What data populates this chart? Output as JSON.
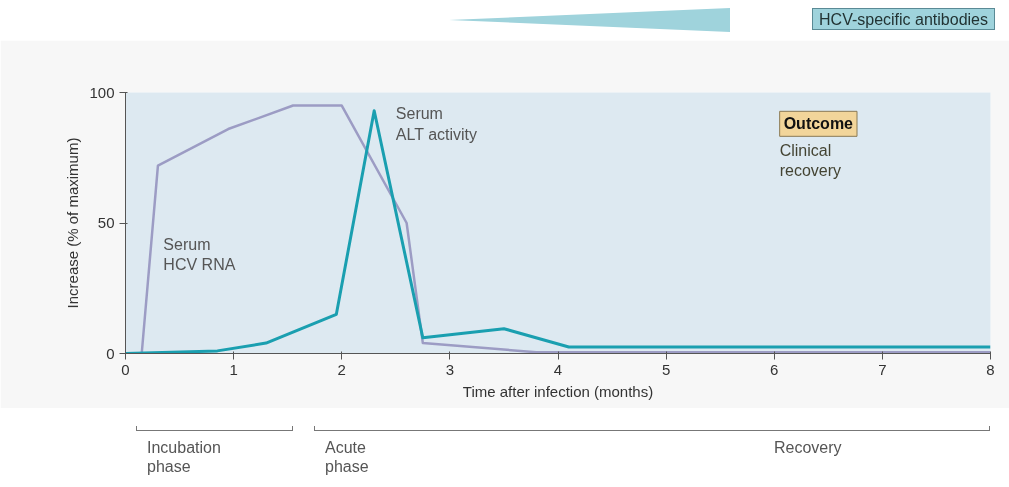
{
  "chart_data": {
    "type": "line",
    "xlabel": "Time after infection (months)",
    "ylabel": "Increase (% of maximum)",
    "xlim": [
      0,
      8
    ],
    "ylim": [
      0,
      100
    ],
    "xticks": [
      0,
      1,
      2,
      3,
      4,
      5,
      6,
      7,
      8
    ],
    "yticks": [
      0,
      50,
      100
    ],
    "grid": false,
    "legend": false,
    "marker": "none",
    "line_style": "solid",
    "series": [
      {
        "name": "Serum HCV RNA",
        "color": "#9c9cc4",
        "x": [
          0,
          0.15,
          0.3,
          0.95,
          1.55,
          2.0,
          2.6,
          2.75,
          3.8,
          8
        ],
        "values": [
          0,
          0,
          72,
          86,
          95,
          95,
          50,
          4,
          0.5,
          0.5
        ]
      },
      {
        "name": "Serum ALT activity",
        "color": "#1a9fb0",
        "x": [
          0,
          0.85,
          1.3,
          1.95,
          2.3,
          2.75,
          3.5,
          4.1,
          8
        ],
        "values": [
          0,
          1,
          4,
          15,
          93,
          6,
          9.5,
          2.5,
          2.5
        ]
      }
    ],
    "annotations": [
      "HCV-specific antibodies",
      "Outcome",
      "Clinical recovery",
      "Incubation phase",
      "Acute phase",
      "Recovery"
    ]
  }
}
